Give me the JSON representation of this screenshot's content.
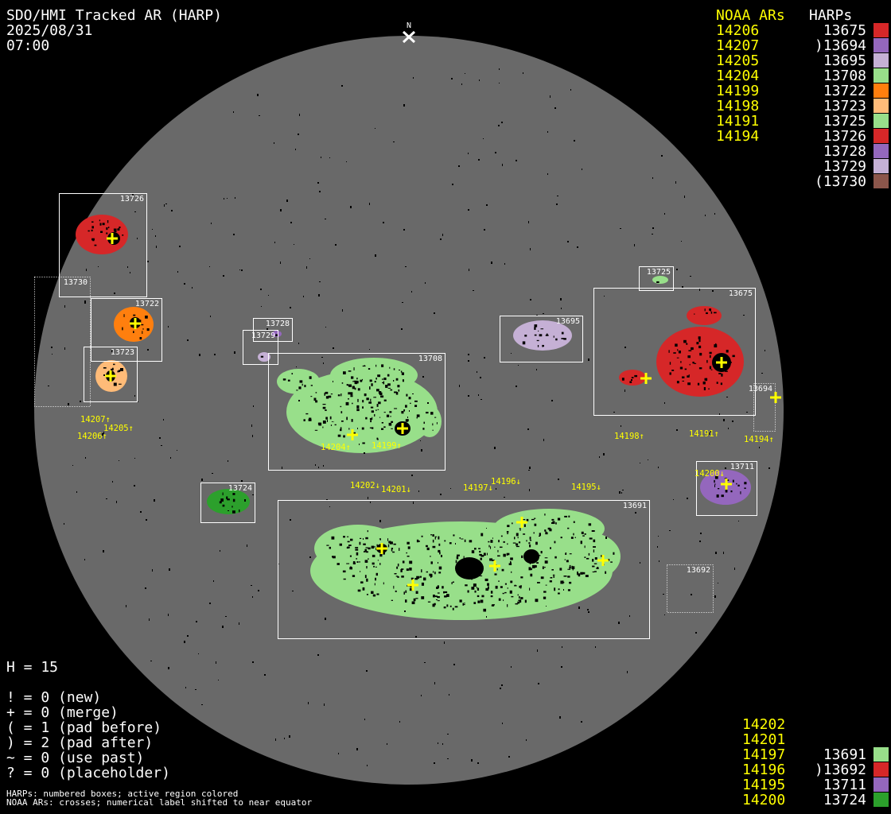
{
  "header": {
    "title": "SDO/HMI Tracked AR (HARP)",
    "date": "2025/08/31",
    "time": "07:00"
  },
  "north_marker": "N",
  "disk_color": "#696969",
  "legend_top": {
    "noaa_header": "NOAA ARs",
    "harp_header": "HARPs",
    "noaa": [
      "14206",
      "14207",
      "14205",
      "14204",
      "14199",
      "14198",
      "14191",
      "14194"
    ],
    "harps": [
      {
        "label": "13675",
        "color": "#d62728"
      },
      {
        "label": ")13694",
        "color": "#9467bd"
      },
      {
        "label": "13695",
        "color": "#c5b0d5"
      },
      {
        "label": "13708",
        "color": "#98df8a"
      },
      {
        "label": "13722",
        "color": "#ff7f0e"
      },
      {
        "label": "13723",
        "color": "#ffbb78"
      },
      {
        "label": "13725",
        "color": "#98df8a"
      },
      {
        "label": "13726",
        "color": "#d62728"
      },
      {
        "label": "13728",
        "color": "#9467bd"
      },
      {
        "label": "13729",
        "color": "#c5b0d5"
      },
      {
        "label": "(13730",
        "color": "#8c564b"
      }
    ]
  },
  "legend_bottom": {
    "noaa": [
      "14202",
      "14201",
      "14197",
      "14196",
      "14195",
      "14200"
    ],
    "harps": [
      {
        "label": "13691",
        "color": "#98df8a"
      },
      {
        "label": ")13692",
        "color": "#d62728"
      },
      {
        "label": "13711",
        "color": "#9467bd"
      },
      {
        "label": "13724",
        "color": "#2ca02c"
      }
    ]
  },
  "stats": {
    "h": "H = 15",
    "lines": [
      "! = 0 (new)",
      "+ = 0 (merge)",
      "( = 1 (pad before)",
      ") = 2 (pad after)",
      "~ = 0 (use past)",
      "? = 0 (placeholder)"
    ]
  },
  "footnotes": [
    "HARPs: numbered boxes; active region colored",
    "NOAA ARs: crosses; numerical label shifted to near equator"
  ],
  "disk_harps": [
    {
      "id": "13726",
      "color": "#d62728",
      "dotted": false
    },
    {
      "id": "13730",
      "color": "#8c564b",
      "dotted": true
    },
    {
      "id": "13722",
      "color": "#ff7f0e",
      "dotted": false
    },
    {
      "id": "13723",
      "color": "#ffbb78",
      "dotted": false
    },
    {
      "id": "13728",
      "color": "#9467bd",
      "dotted": false
    },
    {
      "id": "13729",
      "color": "#c5b0d5",
      "dotted": false
    },
    {
      "id": "13708",
      "color": "#98df8a",
      "dotted": false
    },
    {
      "id": "13695",
      "color": "#c5b0d5",
      "dotted": false
    },
    {
      "id": "13725",
      "color": "#98df8a",
      "dotted": false
    },
    {
      "id": "13675",
      "color": "#d62728",
      "dotted": false
    },
    {
      "id": "13694",
      "color": "#9467bd",
      "dotted": true
    },
    {
      "id": "13724",
      "color": "#2ca02c",
      "dotted": false
    },
    {
      "id": "13691",
      "color": "#98df8a",
      "dotted": false
    },
    {
      "id": "13692",
      "color": "#d62728",
      "dotted": true
    },
    {
      "id": "13711",
      "color": "#9467bd",
      "dotted": false
    }
  ],
  "disk_noaa_labels": [
    "14207↑",
    "14205↑",
    "14206↑",
    "14204↑",
    "14199↑",
    "14202↓",
    "14201↓",
    "14197↓",
    "14196↓",
    "14195↓",
    "14198↑",
    "14191↑",
    "14194↑",
    "14200↓"
  ]
}
